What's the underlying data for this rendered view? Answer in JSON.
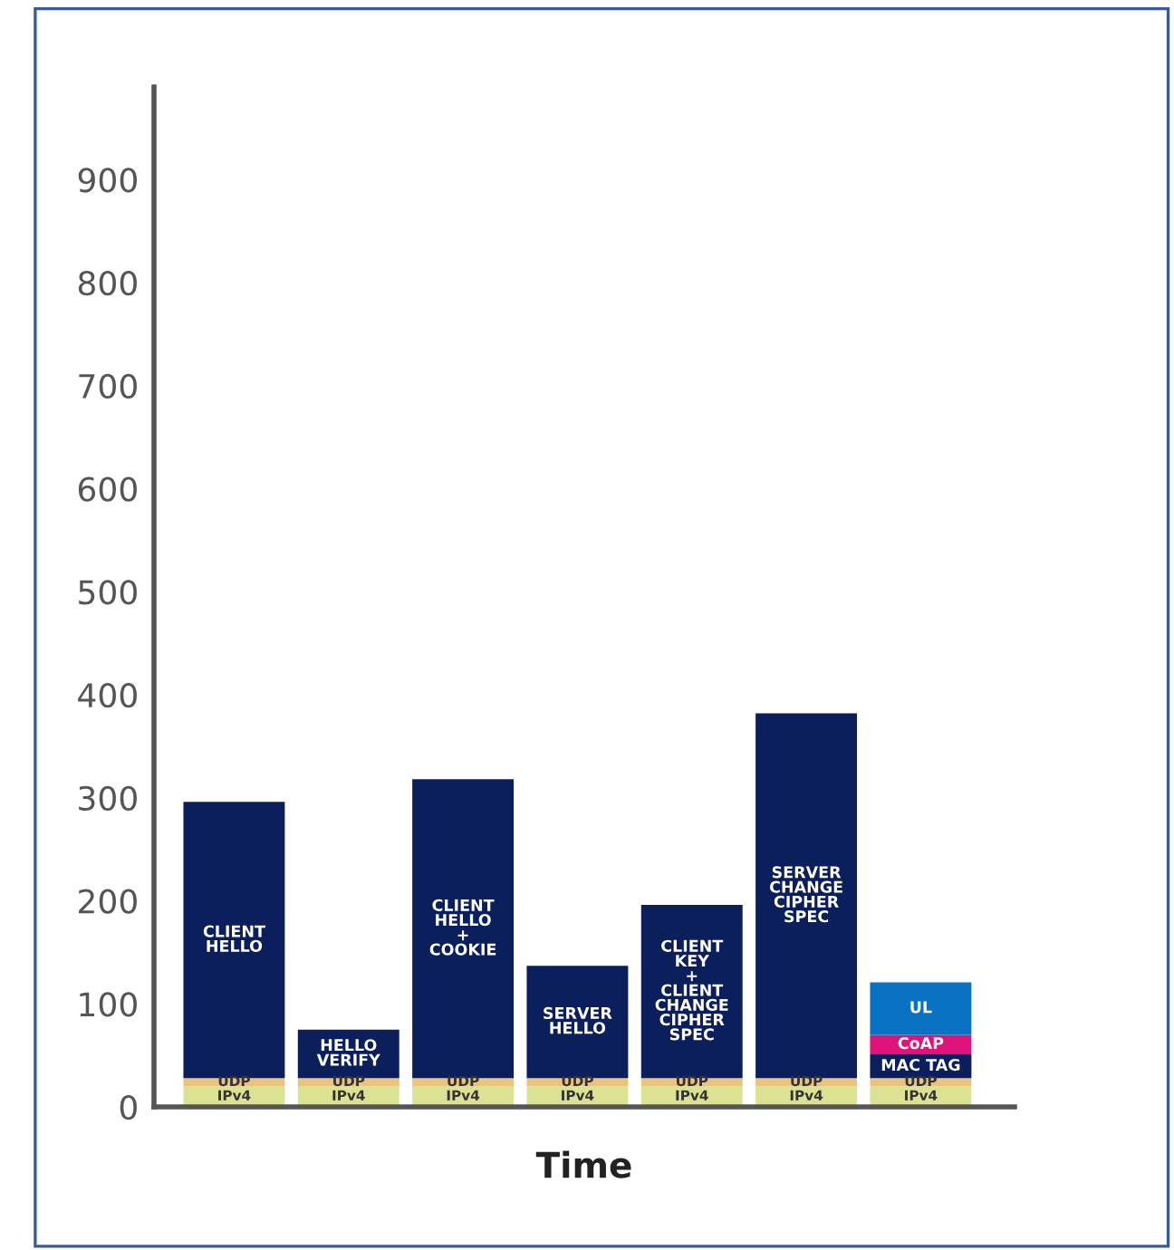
{
  "chart_data": {
    "type": "bar",
    "stacked": true,
    "xlabel": "Time",
    "categories": [
      null,
      null,
      null,
      null,
      null,
      null,
      null
    ],
    "ylim": [
      0,
      990
    ],
    "yticks": [
      0,
      100,
      200,
      300,
      400,
      500,
      600,
      700,
      800,
      900
    ],
    "grid": false,
    "legend": false,
    "series": [
      {
        "name": "IPv4",
        "color": "#dce294",
        "values": [
          20,
          20,
          20,
          20,
          20,
          20,
          20
        ]
      },
      {
        "name": "UDP",
        "color": "#e8c47c",
        "values": [
          8,
          8,
          8,
          8,
          8,
          8,
          8
        ]
      },
      {
        "color": "#0b1f5c",
        "values": [
          268,
          47,
          290,
          109,
          168,
          354,
          null
        ],
        "value_labels": [
          "CLIENT\nHELLO",
          "HELLO\nVERIFY",
          "CLIENT\nHELLO\n+\nCOOKIE",
          "SERVER\nHELLO",
          "CLIENT\nKEY\n+\nCLIENT\nCHANGE\nCIPHER\nSPEC",
          "SERVER\nCHANGE\nCIPHER\nSPEC",
          null
        ]
      },
      {
        "name": "MAC TAG",
        "color": "#0b1f5c",
        "values": [
          null,
          null,
          null,
          null,
          null,
          null,
          23
        ]
      },
      {
        "name": "CoAP",
        "color": "#e0127c",
        "values": [
          null,
          null,
          null,
          null,
          null,
          null,
          19
        ]
      },
      {
        "name": "UL",
        "color": "#0a72c2",
        "values": [
          null,
          null,
          null,
          null,
          null,
          null,
          51
        ]
      }
    ]
  }
}
